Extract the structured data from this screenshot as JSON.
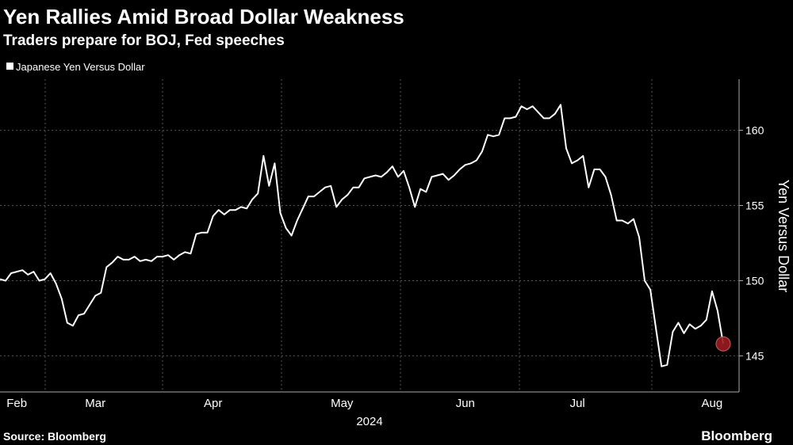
{
  "chart_data": {
    "type": "line",
    "title": "Yen Rallies Amid Broad Dollar Weakness",
    "subtitle": "Traders prepare for BOJ, Fed speeches",
    "xlabel": "2024",
    "ylabel": "Yen Versus Dollar",
    "source": "Source: Bloomberg",
    "brand": "Bloomberg",
    "categories": [
      null,
      null,
      null,
      "Feb",
      null,
      null,
      null,
      null,
      null,
      null,
      null,
      null,
      null,
      null,
      null,
      null,
      null,
      "Mar",
      null,
      null,
      null,
      null,
      null,
      null,
      null,
      null,
      null,
      null,
      null,
      null,
      null,
      null,
      null,
      null,
      null,
      null,
      null,
      null,
      "Apr",
      null,
      null,
      null,
      null,
      null,
      null,
      null,
      null,
      null,
      null,
      null,
      null,
      null,
      null,
      null,
      null,
      null,
      null,
      null,
      null,
      null,
      null,
      "May",
      null,
      null,
      null,
      null,
      null,
      null,
      null,
      null,
      null,
      null,
      null,
      null,
      null,
      null,
      null,
      null,
      null,
      null,
      null,
      null,
      null,
      "Jun",
      null,
      null,
      null,
      null,
      null,
      null,
      null,
      null,
      null,
      null,
      null,
      null,
      null,
      null,
      null,
      null,
      null,
      null,
      null,
      "Jul",
      null,
      null,
      null,
      null,
      null,
      null,
      null,
      null,
      null,
      null,
      null,
      null,
      null,
      null,
      null,
      null,
      null,
      null,
      null,
      null,
      null,
      null,
      null,
      "Aug",
      null,
      null
    ],
    "series": [
      {
        "name": "Japanese Yen Versus Dollar",
        "color": "#ffffff",
        "values": [
          150.1,
          150.0,
          150.5,
          150.6,
          150.7,
          150.4,
          150.6,
          150.0,
          150.1,
          150.5,
          149.8,
          148.8,
          147.2,
          147.0,
          147.7,
          147.8,
          148.4,
          149.0,
          149.2,
          150.9,
          151.2,
          151.6,
          151.4,
          151.4,
          151.6,
          151.3,
          151.4,
          151.3,
          151.6,
          151.6,
          151.7,
          151.4,
          151.7,
          151.9,
          151.8,
          153.1,
          153.2,
          153.2,
          154.3,
          154.7,
          154.4,
          154.7,
          154.7,
          154.9,
          154.8,
          155.4,
          155.8,
          158.3,
          156.3,
          157.8,
          154.5,
          153.5,
          153.0,
          154.0,
          154.8,
          155.6,
          155.6,
          155.9,
          156.2,
          156.3,
          154.9,
          155.4,
          155.7,
          156.2,
          156.2,
          156.8,
          156.9,
          157.0,
          156.9,
          157.2,
          157.6,
          156.9,
          157.3,
          156.2,
          154.9,
          156.1,
          155.9,
          156.9,
          157.0,
          157.1,
          156.7,
          157.0,
          157.4,
          157.7,
          157.8,
          158.0,
          158.6,
          159.7,
          159.6,
          159.7,
          160.8,
          160.8,
          160.9,
          161.6,
          161.4,
          161.6,
          161.2,
          160.8,
          160.8,
          161.1,
          161.7,
          158.8,
          157.8,
          158.0,
          158.3,
          156.2,
          157.4,
          157.4,
          156.9,
          155.7,
          154.0,
          154.0,
          153.8,
          154.1,
          152.9,
          150.0,
          149.4,
          146.8,
          144.3,
          144.4,
          146.6,
          147.2,
          146.5,
          147.1,
          146.8,
          147.0,
          147.4,
          149.3,
          148.0,
          145.8
        ]
      }
    ],
    "end_marker_color": "#9b1b22",
    "ylim": [
      142.6,
      163.4
    ],
    "yticks": [
      145,
      150,
      155,
      160
    ],
    "grid": true
  }
}
